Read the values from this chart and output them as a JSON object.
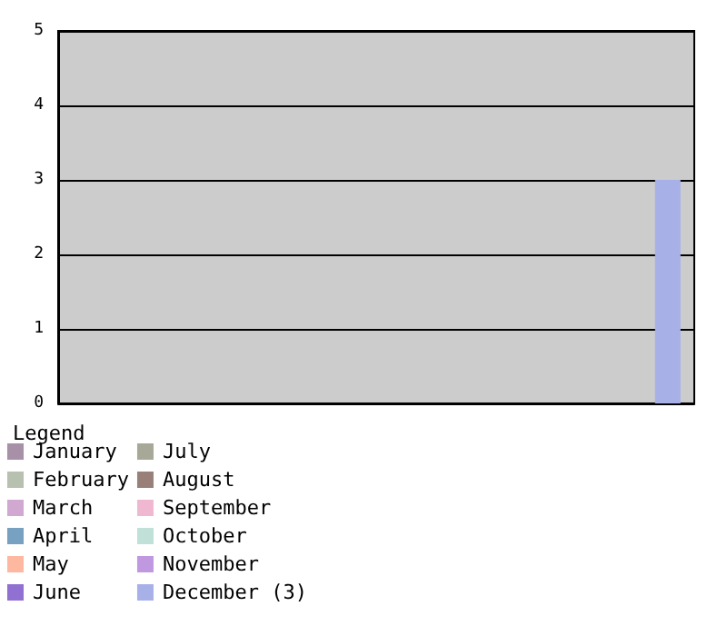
{
  "chart_data": {
    "type": "bar",
    "legend_title": "Legend",
    "stacked": true,
    "categories": [
      null,
      null,
      null,
      null,
      null,
      null,
      null,
      null,
      null,
      null,
      null,
      null
    ],
    "series": [
      {
        "name": "January",
        "color": "#a890a8",
        "values": [
          0,
          null,
          null,
          null,
          null,
          null,
          null,
          null,
          null,
          null,
          null,
          null
        ]
      },
      {
        "name": "February",
        "color": "#b8c0b0",
        "values": [
          null,
          0,
          null,
          null,
          null,
          null,
          null,
          null,
          null,
          null,
          null,
          null
        ]
      },
      {
        "name": "March",
        "color": "#d0a8d0",
        "values": [
          null,
          null,
          0,
          null,
          null,
          null,
          null,
          null,
          null,
          null,
          null,
          null
        ]
      },
      {
        "name": "April",
        "color": "#78a0c0",
        "values": [
          null,
          null,
          null,
          0,
          null,
          null,
          null,
          null,
          null,
          null,
          null,
          null
        ]
      },
      {
        "name": "May",
        "color": "#ffb8a0",
        "values": [
          null,
          null,
          null,
          null,
          0,
          null,
          null,
          null,
          null,
          null,
          null,
          null
        ]
      },
      {
        "name": "June",
        "color": "#9070d0",
        "values": [
          null,
          null,
          null,
          null,
          null,
          0,
          null,
          null,
          null,
          null,
          null,
          null
        ]
      },
      {
        "name": "July",
        "color": "#a8a898",
        "values": [
          null,
          null,
          null,
          null,
          null,
          null,
          0,
          null,
          null,
          null,
          null,
          null
        ]
      },
      {
        "name": "August",
        "color": "#988078",
        "values": [
          null,
          null,
          null,
          null,
          null,
          null,
          null,
          0,
          null,
          null,
          null,
          null
        ]
      },
      {
        "name": "September",
        "color": "#f0b8d0",
        "values": [
          null,
          null,
          null,
          null,
          null,
          null,
          null,
          null,
          0,
          null,
          null,
          null
        ]
      },
      {
        "name": "October",
        "color": "#c0e0d8",
        "values": [
          null,
          null,
          null,
          null,
          null,
          null,
          null,
          null,
          null,
          0,
          null,
          null
        ]
      },
      {
        "name": "November",
        "color": "#c098e0",
        "values": [
          null,
          null,
          null,
          null,
          null,
          null,
          null,
          null,
          null,
          null,
          0,
          null
        ]
      },
      {
        "name": "December (3)",
        "color": "#a8b0e8",
        "values": [
          null,
          null,
          null,
          null,
          null,
          null,
          null,
          null,
          null,
          null,
          null,
          3
        ]
      }
    ],
    "ylim": [
      0,
      5
    ],
    "yticks": [
      0,
      1,
      2,
      3,
      4,
      5
    ],
    "grid": "y",
    "legend": "bottom",
    "tick_labels": "y"
  }
}
